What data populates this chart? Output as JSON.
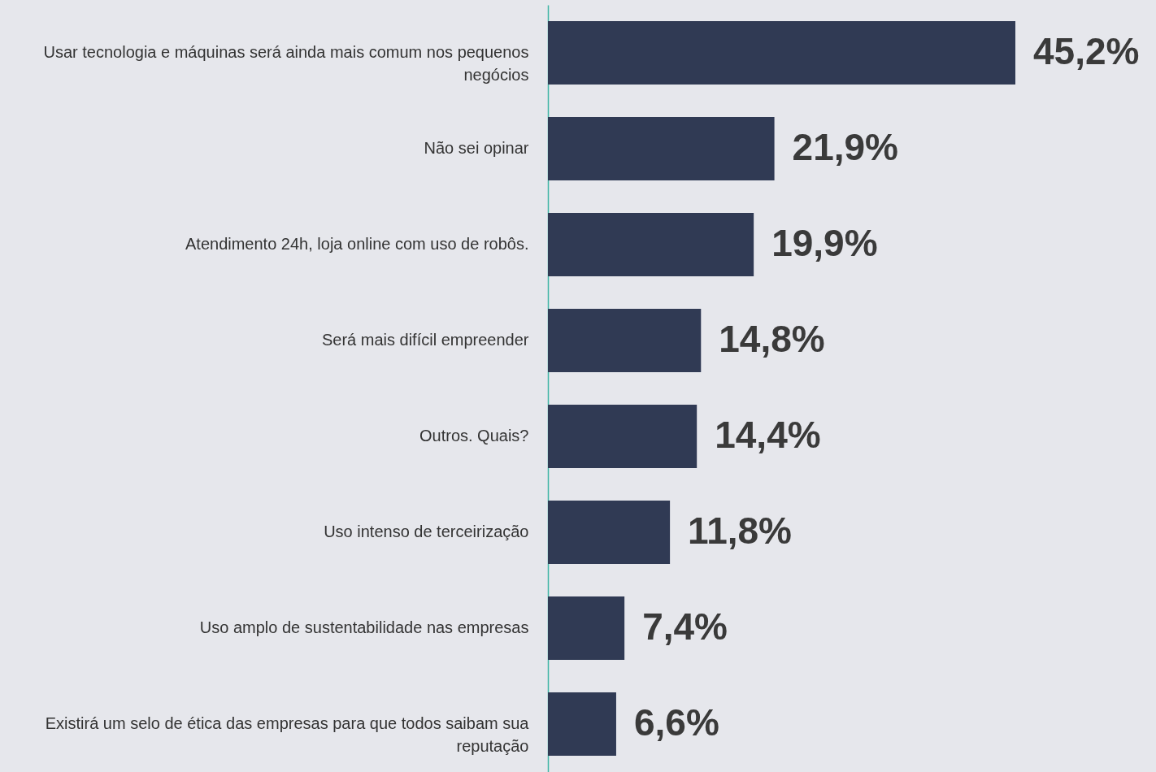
{
  "chart_data": {
    "type": "bar",
    "orientation": "horizontal",
    "color": "#303a54",
    "categories": [
      "Usar tecnologia e máquinas será ainda mais comum nos pequenos negócios",
      "Não sei opinar",
      "Atendimento 24h, loja online com uso de robôs.",
      "Será mais difícil empreender",
      "Outros. Quais?",
      "Uso intenso de terceirização",
      "Uso amplo de sustentabilidade nas empresas",
      "Existirá um selo de ética das empresas para que todos saibam sua reputação"
    ],
    "values": [
      45.2,
      21.9,
      19.9,
      14.8,
      14.4,
      11.8,
      7.4,
      6.6
    ],
    "value_labels": [
      "45,2%",
      "21,9%",
      "19,9%",
      "14,8%",
      "14,4%",
      "11,8%",
      "7,4%",
      "6,6%"
    ]
  }
}
